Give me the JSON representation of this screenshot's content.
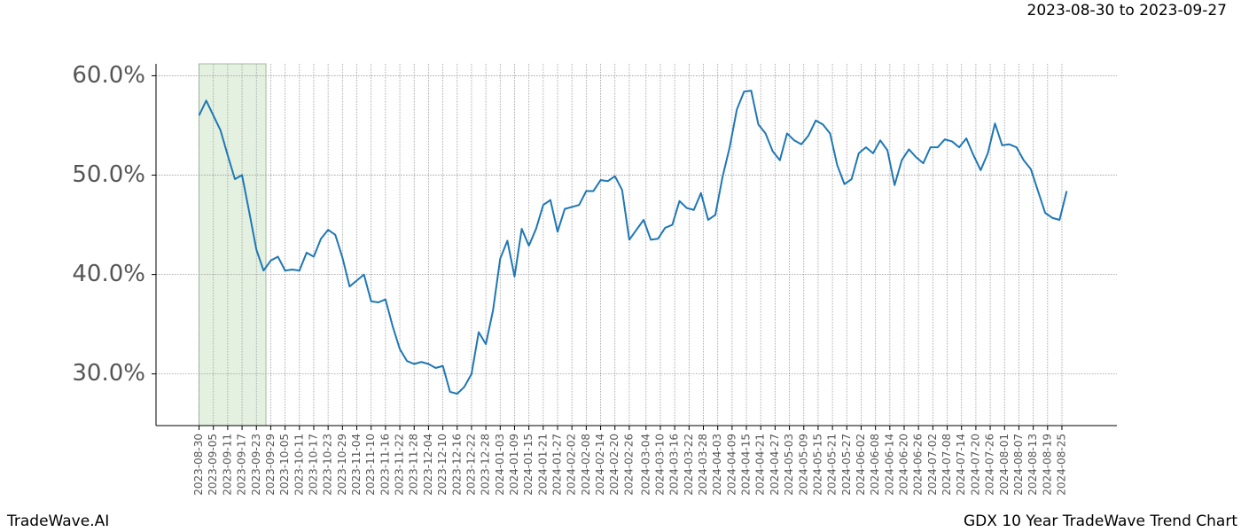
{
  "chart_data": {
    "type": "line",
    "subtitle": "2023-08-30 to 2023-09-27",
    "footer_left": "TradeWave.AI",
    "footer_right": "GDX 10 Year TradeWave Trend Chart",
    "color": "#1f77b4",
    "highlight": {
      "range": [
        "2023-08-30",
        "2023-09-27"
      ],
      "color": "#d8ebd4"
    },
    "grid": true,
    "xlim": [
      "2023-08-12",
      "2024-09-17"
    ],
    "ylim": [
      24.8,
      61.2
    ],
    "yticks": [
      {
        "value": 30,
        "label": "30.0%"
      },
      {
        "value": 40,
        "label": "40.0%"
      },
      {
        "value": 50,
        "label": "50.0%"
      },
      {
        "value": 60,
        "label": "60.0%"
      }
    ],
    "xticks": [
      "2023-08-30",
      "2023-09-05",
      "2023-09-11",
      "2023-09-17",
      "2023-09-23",
      "2023-09-29",
      "2023-10-05",
      "2023-10-11",
      "2023-10-17",
      "2023-10-23",
      "2023-10-29",
      "2023-11-04",
      "2023-11-10",
      "2023-11-16",
      "2023-11-22",
      "2023-11-28",
      "2023-12-04",
      "2023-12-10",
      "2023-12-16",
      "2023-12-22",
      "2023-12-28",
      "2024-01-03",
      "2024-01-09",
      "2024-01-15",
      "2024-01-21",
      "2024-01-27",
      "2024-02-02",
      "2024-02-08",
      "2024-02-14",
      "2024-02-20",
      "2024-02-26",
      "2024-03-04",
      "2024-03-10",
      "2024-03-16",
      "2024-03-22",
      "2024-03-28",
      "2024-04-03",
      "2024-04-09",
      "2024-04-15",
      "2024-04-21",
      "2024-04-27",
      "2024-05-03",
      "2024-05-09",
      "2024-05-15",
      "2024-05-21",
      "2024-05-27",
      "2024-06-02",
      "2024-06-08",
      "2024-06-14",
      "2024-06-20",
      "2024-06-26",
      "2024-07-02",
      "2024-07-08",
      "2024-07-14",
      "2024-07-20",
      "2024-07-26",
      "2024-08-01",
      "2024-08-07",
      "2024-08-13",
      "2024-08-19",
      "2024-08-25"
    ],
    "x": [
      "2023-08-30",
      "2023-09-02",
      "2023-09-05",
      "2023-09-08",
      "2023-09-11",
      "2023-09-14",
      "2023-09-17",
      "2023-09-20",
      "2023-09-23",
      "2023-09-26",
      "2023-09-29",
      "2023-10-02",
      "2023-10-05",
      "2023-10-08",
      "2023-10-11",
      "2023-10-14",
      "2023-10-17",
      "2023-10-20",
      "2023-10-23",
      "2023-10-26",
      "2023-10-29",
      "2023-11-01",
      "2023-11-04",
      "2023-11-07",
      "2023-11-10",
      "2023-11-13",
      "2023-11-16",
      "2023-11-19",
      "2023-11-22",
      "2023-11-25",
      "2023-11-28",
      "2023-12-01",
      "2023-12-04",
      "2023-12-07",
      "2023-12-10",
      "2023-12-13",
      "2023-12-16",
      "2023-12-19",
      "2023-12-22",
      "2023-12-25",
      "2023-12-28",
      "2023-12-31",
      "2024-01-03",
      "2024-01-06",
      "2024-01-09",
      "2024-01-12",
      "2024-01-15",
      "2024-01-18",
      "2024-01-21",
      "2024-01-24",
      "2024-01-27",
      "2024-01-30",
      "2024-02-02",
      "2024-02-05",
      "2024-02-08",
      "2024-02-11",
      "2024-02-14",
      "2024-02-17",
      "2024-02-20",
      "2024-02-23",
      "2024-02-26",
      "2024-02-29",
      "2024-03-03",
      "2024-03-06",
      "2024-03-09",
      "2024-03-12",
      "2024-03-15",
      "2024-03-18",
      "2024-03-21",
      "2024-03-24",
      "2024-03-27",
      "2024-03-30",
      "2024-04-02",
      "2024-04-05",
      "2024-04-08",
      "2024-04-11",
      "2024-04-14",
      "2024-04-17",
      "2024-04-20",
      "2024-04-23",
      "2024-04-26",
      "2024-04-29",
      "2024-05-02",
      "2024-05-05",
      "2024-05-08",
      "2024-05-11",
      "2024-05-14",
      "2024-05-17",
      "2024-05-20",
      "2024-05-23",
      "2024-05-26",
      "2024-05-29",
      "2024-06-01",
      "2024-06-04",
      "2024-06-07",
      "2024-06-10",
      "2024-06-13",
      "2024-06-16",
      "2024-06-19",
      "2024-06-22",
      "2024-06-25",
      "2024-06-28",
      "2024-07-01",
      "2024-07-04",
      "2024-07-07",
      "2024-07-10",
      "2024-07-13",
      "2024-07-16",
      "2024-07-19",
      "2024-07-22",
      "2024-07-25",
      "2024-07-28",
      "2024-07-31",
      "2024-08-03",
      "2024-08-06",
      "2024-08-09",
      "2024-08-12",
      "2024-08-15",
      "2024-08-18",
      "2024-08-21",
      "2024-08-24",
      "2024-08-27"
    ],
    "values": [
      56.0,
      57.5,
      56.0,
      54.5,
      52.0,
      49.6,
      50.0,
      46.3,
      42.5,
      40.4,
      41.4,
      41.8,
      40.4,
      40.5,
      40.4,
      42.2,
      41.8,
      43.6,
      44.5,
      44.0,
      41.7,
      38.8,
      39.4,
      40.0,
      37.3,
      37.2,
      37.5,
      34.8,
      32.5,
      31.3,
      31.0,
      31.2,
      31.0,
      30.6,
      30.8,
      28.2,
      28.0,
      28.7,
      30.0,
      34.2,
      33.0,
      36.4,
      41.6,
      43.4,
      39.8,
      44.6,
      42.9,
      44.6,
      47.0,
      47.5,
      44.3,
      46.6,
      46.8,
      47.0,
      48.4,
      48.4,
      49.5,
      49.4,
      49.9,
      48.5,
      43.5,
      44.5,
      45.5,
      43.5,
      43.6,
      44.7,
      45.0,
      47.4,
      46.7,
      46.5,
      48.2,
      45.5,
      46.0,
      49.8,
      52.8,
      56.6,
      58.4,
      58.5,
      55.1,
      54.2,
      52.4,
      51.5,
      54.2,
      53.5,
      53.1,
      54.0,
      55.5,
      55.1,
      54.2,
      51.0,
      49.1,
      49.6,
      52.2,
      52.8,
      52.2,
      53.5,
      52.5,
      49.0,
      51.5,
      52.6,
      51.8,
      51.2,
      52.8,
      52.8,
      53.6,
      53.4,
      52.8,
      53.7,
      52.0,
      50.5,
      52.2,
      55.2,
      53.0,
      53.1,
      52.8,
      51.5,
      50.6,
      48.4,
      46.2,
      45.7,
      45.5,
      48.4
    ]
  }
}
